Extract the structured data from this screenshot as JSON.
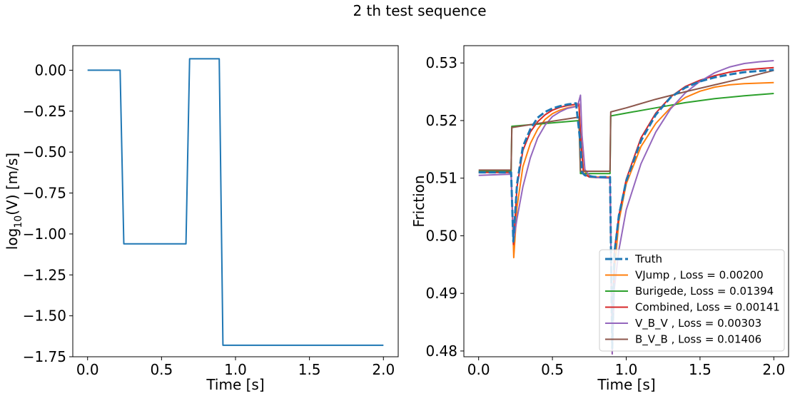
{
  "figure": {
    "suptitle": "2 th test sequence"
  },
  "chart_data": [
    {
      "type": "line",
      "title": "",
      "xlabel": "Time [s]",
      "ylabel_prefix": "log",
      "ylabel_sub": "10",
      "ylabel_suffix": "(V) [m/s]",
      "xlim": [
        -0.1,
        2.1
      ],
      "ylim": [
        -1.75,
        0.15
      ],
      "xticks": [
        0.0,
        0.5,
        1.0,
        1.5,
        2.0
      ],
      "xtick_labels": [
        "0.0",
        "0.5",
        "1.0",
        "1.5",
        "2.0"
      ],
      "yticks": [
        0.0,
        -0.25,
        -0.5,
        -0.75,
        -1.0,
        -1.25,
        -1.5,
        -1.75
      ],
      "ytick_labels": [
        "0.00",
        "−0.25",
        "−0.50",
        "−0.75",
        "−1.00",
        "−1.25",
        "−1.50",
        "−1.75"
      ],
      "series": [
        {
          "color": "#1f77b4",
          "x": [
            0.0,
            0.22,
            0.245,
            0.665,
            0.69,
            0.89,
            0.915,
            2.0
          ],
          "y": [
            0.0,
            0.0,
            -1.06,
            -1.06,
            0.07,
            0.07,
            -1.68,
            -1.68
          ]
        }
      ]
    },
    {
      "type": "line",
      "title": "",
      "xlabel": "Time [s]",
      "ylabel": "Friction",
      "xlim": [
        -0.1,
        2.1
      ],
      "ylim": [
        0.479,
        0.533
      ],
      "xticks": [
        0.0,
        0.5,
        1.0,
        1.5,
        2.0
      ],
      "xtick_labels": [
        "0.0",
        "0.5",
        "1.0",
        "1.5",
        "2.0"
      ],
      "yticks": [
        0.48,
        0.49,
        0.5,
        0.51,
        0.52,
        0.53
      ],
      "ytick_labels": [
        "0.48",
        "0.49",
        "0.50",
        "0.51",
        "0.52",
        "0.53"
      ],
      "legend_position": "lower-right",
      "series": [
        {
          "name": "Truth",
          "color": "#1f77b4",
          "dashed": true,
          "x": [
            0.0,
            0.22,
            0.235,
            0.26,
            0.3,
            0.35,
            0.4,
            0.45,
            0.5,
            0.55,
            0.6,
            0.66,
            0.69,
            0.7,
            0.72,
            0.75,
            0.8,
            0.89,
            0.905,
            0.92,
            0.95,
            1.0,
            1.1,
            1.2,
            1.3,
            1.4,
            1.5,
            1.6,
            1.7,
            1.8,
            1.9,
            2.0
          ],
          "y": [
            0.511,
            0.511,
            0.499,
            0.509,
            0.5155,
            0.5185,
            0.5205,
            0.5215,
            0.5221,
            0.5225,
            0.5228,
            0.523,
            0.516,
            0.511,
            0.5105,
            0.5103,
            0.5102,
            0.5102,
            0.4805,
            0.497,
            0.5035,
            0.5095,
            0.5165,
            0.521,
            0.524,
            0.5257,
            0.5268,
            0.5275,
            0.528,
            0.5284,
            0.5286,
            0.5288
          ]
        },
        {
          "name": "VJump   , Loss = 0.00200",
          "color": "#ff7f0e",
          "x": [
            0.0,
            0.22,
            0.238,
            0.26,
            0.3,
            0.35,
            0.4,
            0.45,
            0.5,
            0.55,
            0.6,
            0.68,
            0.69,
            0.71,
            0.75,
            0.8,
            0.89,
            0.905,
            0.92,
            0.95,
            1.0,
            1.1,
            1.2,
            1.3,
            1.4,
            1.5,
            1.6,
            1.7,
            1.8,
            1.9,
            2.0
          ],
          "y": [
            0.511,
            0.511,
            0.4962,
            0.505,
            0.512,
            0.516,
            0.5185,
            0.5202,
            0.5212,
            0.5218,
            0.5222,
            0.5226,
            0.5175,
            0.5115,
            0.5103,
            0.5102,
            0.5102,
            0.4805,
            0.494,
            0.5025,
            0.509,
            0.5155,
            0.5195,
            0.5222,
            0.524,
            0.5251,
            0.5258,
            0.5262,
            0.5264,
            0.5265,
            0.5266
          ]
        },
        {
          "name": "Burigede, Loss = 0.01394",
          "color": "#2ca02c",
          "x": [
            0.0,
            0.22,
            0.225,
            0.68,
            0.69,
            0.89,
            0.895,
            1.0,
            1.2,
            1.4,
            1.6,
            1.8,
            2.0
          ],
          "y": [
            0.5112,
            0.5112,
            0.519,
            0.52,
            0.5108,
            0.5108,
            0.5208,
            0.5213,
            0.5222,
            0.5231,
            0.5238,
            0.5243,
            0.5247
          ]
        },
        {
          "name": "Combined, Loss = 0.00141",
          "color": "#d62728",
          "x": [
            0.0,
            0.22,
            0.236,
            0.26,
            0.3,
            0.35,
            0.4,
            0.45,
            0.5,
            0.55,
            0.6,
            0.68,
            0.69,
            0.71,
            0.75,
            0.8,
            0.89,
            0.905,
            0.92,
            0.95,
            1.0,
            1.1,
            1.2,
            1.3,
            1.4,
            1.5,
            1.6,
            1.7,
            1.8,
            1.9,
            2.0
          ],
          "y": [
            0.511,
            0.511,
            0.4985,
            0.5085,
            0.5148,
            0.518,
            0.5198,
            0.521,
            0.5218,
            0.5223,
            0.5226,
            0.5229,
            0.5175,
            0.5108,
            0.5102,
            0.5101,
            0.5101,
            0.4795,
            0.4975,
            0.5035,
            0.5098,
            0.517,
            0.5213,
            0.5241,
            0.5259,
            0.527,
            0.5278,
            0.5284,
            0.5288,
            0.529,
            0.5292
          ]
        },
        {
          "name": "V_B_V   , Loss = 0.00303",
          "color": "#9467bd",
          "x": [
            0.0,
            0.22,
            0.236,
            0.26,
            0.3,
            0.35,
            0.4,
            0.45,
            0.5,
            0.55,
            0.6,
            0.67,
            0.69,
            0.7,
            0.72,
            0.75,
            0.8,
            0.89,
            0.905,
            0.92,
            0.95,
            1.0,
            1.1,
            1.2,
            1.3,
            1.4,
            1.5,
            1.6,
            1.7,
            1.8,
            1.9,
            2.0
          ],
          "y": [
            0.5105,
            0.5107,
            0.499,
            0.503,
            0.5085,
            0.5135,
            0.517,
            0.5192,
            0.5207,
            0.5215,
            0.5221,
            0.5225,
            0.5244,
            0.5175,
            0.5115,
            0.5105,
            0.5101,
            0.51,
            0.4795,
            0.491,
            0.4975,
            0.5045,
            0.5125,
            0.518,
            0.522,
            0.5248,
            0.5268,
            0.5283,
            0.5293,
            0.5299,
            0.5302,
            0.5304
          ]
        },
        {
          "name": "B_V_B   , Loss = 0.01406",
          "color": "#8c564b",
          "x": [
            0.0,
            0.22,
            0.225,
            0.68,
            0.69,
            0.89,
            0.895,
            1.0,
            1.2,
            1.4,
            1.6,
            1.8,
            2.0
          ],
          "y": [
            0.5114,
            0.5114,
            0.5188,
            0.5206,
            0.5112,
            0.5112,
            0.5215,
            0.5222,
            0.5237,
            0.525,
            0.5262,
            0.5274,
            0.5287
          ]
        }
      ]
    }
  ]
}
